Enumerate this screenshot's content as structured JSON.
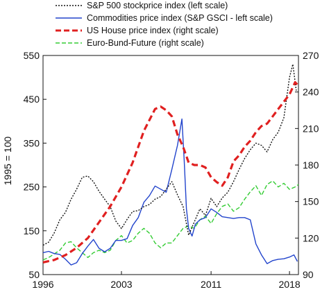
{
  "chart_data": {
    "type": "line",
    "ylabel_left": "1995 = 100",
    "x_range": [
      1996,
      2018.8
    ],
    "x_ticks": [
      1996,
      2003,
      2011,
      2018
    ],
    "y_left_range": [
      50,
      550
    ],
    "y_left_ticks": [
      50,
      150,
      250,
      350,
      450,
      550
    ],
    "y_right_range": [
      90,
      270
    ],
    "y_right_ticks": [
      90,
      120,
      150,
      180,
      210,
      240,
      270
    ],
    "grid": false,
    "legend_position": "top",
    "series": [
      {
        "name": "S&P 500 stockprice index (left scale)",
        "axis": "left",
        "color": "#111111",
        "style": "dotted",
        "points": [
          [
            1996.0,
            117
          ],
          [
            1996.5,
            124
          ],
          [
            1997.0,
            145
          ],
          [
            1997.5,
            175
          ],
          [
            1998.0,
            192
          ],
          [
            1998.5,
            222
          ],
          [
            1999.0,
            245
          ],
          [
            1999.5,
            272
          ],
          [
            2000.0,
            275
          ],
          [
            2000.5,
            262
          ],
          [
            2001.0,
            240
          ],
          [
            2001.5,
            222
          ],
          [
            2002.0,
            205
          ],
          [
            2002.5,
            172
          ],
          [
            2003.0,
            155
          ],
          [
            2003.5,
            176
          ],
          [
            2004.0,
            194
          ],
          [
            2004.5,
            196
          ],
          [
            2005.0,
            205
          ],
          [
            2005.5,
            210
          ],
          [
            2006.0,
            222
          ],
          [
            2006.5,
            228
          ],
          [
            2007.0,
            245
          ],
          [
            2007.5,
            262
          ],
          [
            2008.0,
            232
          ],
          [
            2008.5,
            205
          ],
          [
            2009.0,
            140
          ],
          [
            2009.5,
            170
          ],
          [
            2010.0,
            200
          ],
          [
            2010.5,
            185
          ],
          [
            2011.0,
            224
          ],
          [
            2011.5,
            205
          ],
          [
            2012.0,
            225
          ],
          [
            2012.5,
            238
          ],
          [
            2013.0,
            262
          ],
          [
            2013.5,
            290
          ],
          [
            2014.0,
            315
          ],
          [
            2014.5,
            335
          ],
          [
            2015.0,
            350
          ],
          [
            2015.5,
            345
          ],
          [
            2016.0,
            330
          ],
          [
            2016.5,
            358
          ],
          [
            2017.0,
            375
          ],
          [
            2017.5,
            408
          ],
          [
            2018.0,
            500
          ],
          [
            2018.3,
            530
          ],
          [
            2018.6,
            470
          ]
        ]
      },
      {
        "name": "Commodities price index (S&P GSCI - left scale)",
        "axis": "left",
        "color": "#2244cc",
        "style": "solid",
        "points": [
          [
            1996.0,
            100
          ],
          [
            1996.5,
            103
          ],
          [
            1997.0,
            98
          ],
          [
            1997.5,
            96
          ],
          [
            1998.0,
            85
          ],
          [
            1998.5,
            72
          ],
          [
            1999.0,
            77
          ],
          [
            1999.5,
            98
          ],
          [
            2000.0,
            115
          ],
          [
            2000.5,
            130
          ],
          [
            2001.0,
            110
          ],
          [
            2001.5,
            102
          ],
          [
            2002.0,
            110
          ],
          [
            2002.5,
            128
          ],
          [
            2003.0,
            128
          ],
          [
            2003.5,
            132
          ],
          [
            2004.0,
            162
          ],
          [
            2004.5,
            180
          ],
          [
            2005.0,
            215
          ],
          [
            2005.5,
            230
          ],
          [
            2006.0,
            252
          ],
          [
            2006.5,
            245
          ],
          [
            2007.0,
            238
          ],
          [
            2007.5,
            290
          ],
          [
            2008.0,
            345
          ],
          [
            2008.4,
            405
          ],
          [
            2008.6,
            310
          ],
          [
            2008.8,
            200
          ],
          [
            2009.0,
            155
          ],
          [
            2009.3,
            138
          ],
          [
            2009.6,
            165
          ],
          [
            2010.0,
            175
          ],
          [
            2010.5,
            180
          ],
          [
            2011.0,
            200
          ],
          [
            2011.5,
            192
          ],
          [
            2012.0,
            182
          ],
          [
            2012.5,
            180
          ],
          [
            2013.0,
            178
          ],
          [
            2013.5,
            180
          ],
          [
            2014.0,
            180
          ],
          [
            2014.5,
            175
          ],
          [
            2015.0,
            120
          ],
          [
            2015.5,
            95
          ],
          [
            2016.0,
            75
          ],
          [
            2016.5,
            82
          ],
          [
            2017.0,
            85
          ],
          [
            2017.5,
            86
          ],
          [
            2018.0,
            90
          ],
          [
            2018.4,
            95
          ],
          [
            2018.7,
            80
          ]
        ]
      },
      {
        "name": "US House price index (right scale)",
        "axis": "right",
        "color": "#e02020",
        "style": "dashed",
        "points": [
          [
            1996.0,
            100
          ],
          [
            1997.0,
            102
          ],
          [
            1998.0,
            106
          ],
          [
            1999.0,
            112
          ],
          [
            2000.0,
            120
          ],
          [
            2001.0,
            133
          ],
          [
            2002.0,
            146
          ],
          [
            2003.0,
            162
          ],
          [
            2004.0,
            182
          ],
          [
            2005.0,
            208
          ],
          [
            2006.0,
            226
          ],
          [
            2006.5,
            228
          ],
          [
            2007.0,
            225
          ],
          [
            2007.5,
            220
          ],
          [
            2008.0,
            205
          ],
          [
            2008.5,
            195
          ],
          [
            2009.0,
            182
          ],
          [
            2009.5,
            180
          ],
          [
            2010.0,
            180
          ],
          [
            2010.5,
            178
          ],
          [
            2011.0,
            170
          ],
          [
            2011.5,
            166
          ],
          [
            2012.0,
            163
          ],
          [
            2012.5,
            170
          ],
          [
            2013.0,
            183
          ],
          [
            2013.5,
            188
          ],
          [
            2014.0,
            195
          ],
          [
            2014.5,
            200
          ],
          [
            2015.0,
            207
          ],
          [
            2015.5,
            212
          ],
          [
            2016.0,
            214
          ],
          [
            2016.5,
            220
          ],
          [
            2017.0,
            226
          ],
          [
            2017.5,
            232
          ],
          [
            2018.0,
            238
          ],
          [
            2018.5,
            248
          ],
          [
            2018.8,
            245
          ]
        ]
      },
      {
        "name": "Euro-Bund-Future  (right scale)",
        "axis": "right",
        "color": "#33cc33",
        "style": "dashed",
        "points": [
          [
            1996.0,
            102
          ],
          [
            1996.5,
            104
          ],
          [
            1997.0,
            107
          ],
          [
            1997.5,
            110
          ],
          [
            1998.0,
            116
          ],
          [
            1998.5,
            117
          ],
          [
            1999.0,
            112
          ],
          [
            1999.5,
            108
          ],
          [
            2000.0,
            104
          ],
          [
            2000.5,
            108
          ],
          [
            2001.0,
            110
          ],
          [
            2001.5,
            108
          ],
          [
            2002.0,
            110
          ],
          [
            2002.5,
            118
          ],
          [
            2003.0,
            122
          ],
          [
            2003.5,
            116
          ],
          [
            2004.0,
            118
          ],
          [
            2004.5,
            124
          ],
          [
            2005.0,
            128
          ],
          [
            2005.5,
            124
          ],
          [
            2006.0,
            116
          ],
          [
            2006.5,
            112
          ],
          [
            2007.0,
            116
          ],
          [
            2007.5,
            116
          ],
          [
            2008.0,
            122
          ],
          [
            2008.5,
            128
          ],
          [
            2009.0,
            130
          ],
          [
            2009.5,
            128
          ],
          [
            2010.0,
            135
          ],
          [
            2010.5,
            138
          ],
          [
            2011.0,
            132
          ],
          [
            2011.5,
            140
          ],
          [
            2012.0,
            146
          ],
          [
            2012.5,
            148
          ],
          [
            2013.0,
            142
          ],
          [
            2013.5,
            145
          ],
          [
            2014.0,
            152
          ],
          [
            2014.5,
            158
          ],
          [
            2015.0,
            163
          ],
          [
            2015.5,
            155
          ],
          [
            2016.0,
            164
          ],
          [
            2016.5,
            167
          ],
          [
            2017.0,
            162
          ],
          [
            2017.5,
            165
          ],
          [
            2018.0,
            160
          ],
          [
            2018.5,
            162
          ],
          [
            2018.8,
            164
          ]
        ]
      }
    ]
  }
}
